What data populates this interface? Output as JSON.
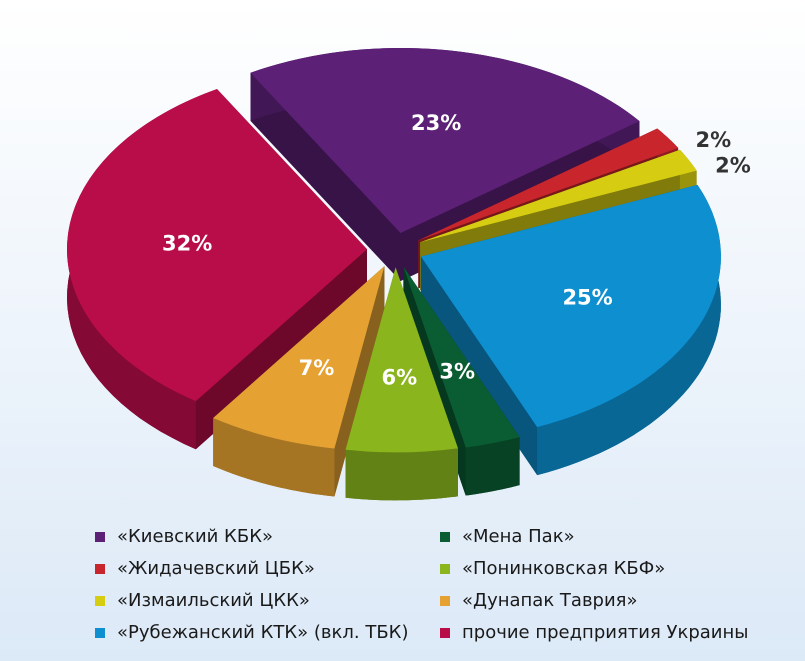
{
  "chart_data": {
    "type": "pie",
    "categories": [
      "«Киевский КБК»",
      "«Жидачевский ЦБК»",
      "«Измаильский ЦКК»",
      "«Рубежанский КТК» (вкл. ТБК)",
      "«Мена Пак»",
      "«Понинковская КБФ»",
      "«Дунапак Таврия»",
      "прочие предприятия Украины"
    ],
    "values": [
      23,
      2,
      2,
      25,
      3,
      6,
      7,
      32
    ],
    "value_labels": [
      "23%",
      "2%",
      "2%",
      "25%",
      "3%",
      "6%",
      "7%",
      "32%"
    ],
    "colors": [
      "#5c2077",
      "#c8262c",
      "#d6cd12",
      "#0d8fd0",
      "#0a5c33",
      "#8ab51d",
      "#e5a232",
      "#b80d48"
    ]
  }
}
